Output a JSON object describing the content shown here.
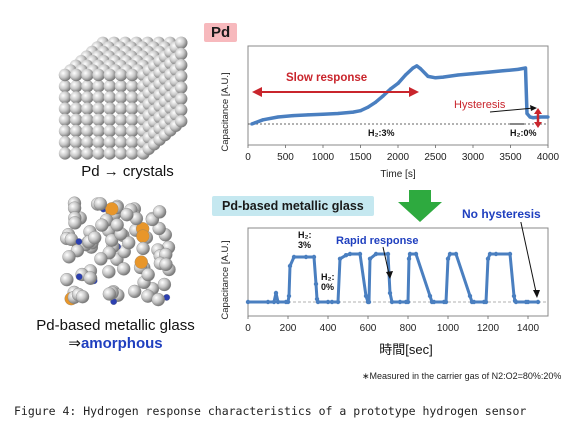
{
  "left": {
    "crystal_label": "Pd → crystals",
    "glass_label_line1": "Pd-based metallic glass",
    "glass_label_arrow": "⇒",
    "glass_label_line2": "amorphous"
  },
  "badges": {
    "pd": "Pd",
    "glass": "Pd-based metallic glass"
  },
  "annotations": {
    "slow_response": "Slow response",
    "hysteresis": "Hysteresis",
    "h2_3_top": "H₂:3%",
    "h2_0_top": "H₂:0%",
    "no_hysteresis": "No hysteresis",
    "rapid_response": "Rapid response",
    "h2_3_bottom": "H₂:\n3%",
    "h2_0_bottom": "H₂:\n0%"
  },
  "note": "∗Measured in the carrier gas of N2:O2=80%:20%",
  "caption": "Figure 4: Hydrogen response characteristics of a prototype hydrogen sensor",
  "colors": {
    "series": "#4a7fc0",
    "red_arrow": "#c9252c",
    "blue_text": "#1f3fbf",
    "green_arrow": "#2eaa3f",
    "orange_atom": "#e8962a",
    "blue_atom": "#2b3fb0"
  },
  "chart_data": [
    {
      "type": "line",
      "title": "",
      "xlabel": "Time [s]",
      "ylabel": "Capacitance [A.U.]",
      "xlim": [
        0,
        4000
      ],
      "xticks": [
        0,
        500,
        1000,
        1500,
        2000,
        2500,
        3000,
        3500,
        4000
      ],
      "series": [
        {
          "x": [
            50,
            100,
            200,
            400,
            600,
            800,
            1000,
            1200,
            1400,
            1500,
            1600,
            1700,
            1800,
            1900,
            2000,
            2100,
            2200,
            2250,
            2300,
            2400,
            2500,
            2600,
            2800,
            3000,
            3200,
            3400,
            3600,
            3700,
            3720,
            3760,
            3800,
            3900,
            4000
          ],
          "values": [
            0.0,
            0.02,
            0.06,
            0.1,
            0.12,
            0.13,
            0.14,
            0.15,
            0.17,
            0.19,
            0.24,
            0.31,
            0.4,
            0.5,
            0.58,
            0.7,
            0.8,
            0.83,
            0.79,
            0.68,
            0.66,
            0.67,
            0.7,
            0.72,
            0.74,
            0.76,
            0.78,
            0.8,
            0.15,
            0.1,
            0.09,
            0.1,
            0.1
          ]
        }
      ]
    },
    {
      "type": "line",
      "title": "",
      "xlabel": "時間[sec]",
      "ylabel": "Capacitance [A.U.]",
      "xlim": [
        0,
        1500
      ],
      "xticks": [
        0,
        200,
        400,
        600,
        800,
        1000,
        1200,
        1400
      ],
      "series": [
        {
          "x": [
            0,
            100,
            130,
            140,
            150,
            190,
            200,
            205,
            210,
            230,
            290,
            330,
            340,
            345,
            350,
            400,
            420,
            450,
            460,
            490,
            510,
            560,
            590,
            600,
            605,
            610,
            640,
            700,
            710,
            720,
            760,
            790,
            800,
            805,
            810,
            840,
            910,
            920,
            930,
            980,
            990,
            1000,
            1010,
            1040,
            1110,
            1120,
            1130,
            1180,
            1190,
            1200,
            1210,
            1240,
            1310,
            1330,
            1335,
            1340,
            1390,
            1400,
            1450
          ],
          "values": [
            0.0,
            0.0,
            0.0,
            0.15,
            0.0,
            0.0,
            0.0,
            0.1,
            0.6,
            0.75,
            0.75,
            0.75,
            0.3,
            0.05,
            0.0,
            0.0,
            0.0,
            0.0,
            0.72,
            0.78,
            0.8,
            0.8,
            0.1,
            0.0,
            0.0,
            0.72,
            0.8,
            0.8,
            0.15,
            0.0,
            0.0,
            0.0,
            0.0,
            0.72,
            0.8,
            0.8,
            0.1,
            0.0,
            0.0,
            0.0,
            0.0,
            0.72,
            0.8,
            0.8,
            0.1,
            0.0,
            0.0,
            0.0,
            0.0,
            0.72,
            0.8,
            0.8,
            0.8,
            0.1,
            0.02,
            0.0,
            0.0,
            0.0,
            0.0
          ]
        }
      ]
    }
  ]
}
